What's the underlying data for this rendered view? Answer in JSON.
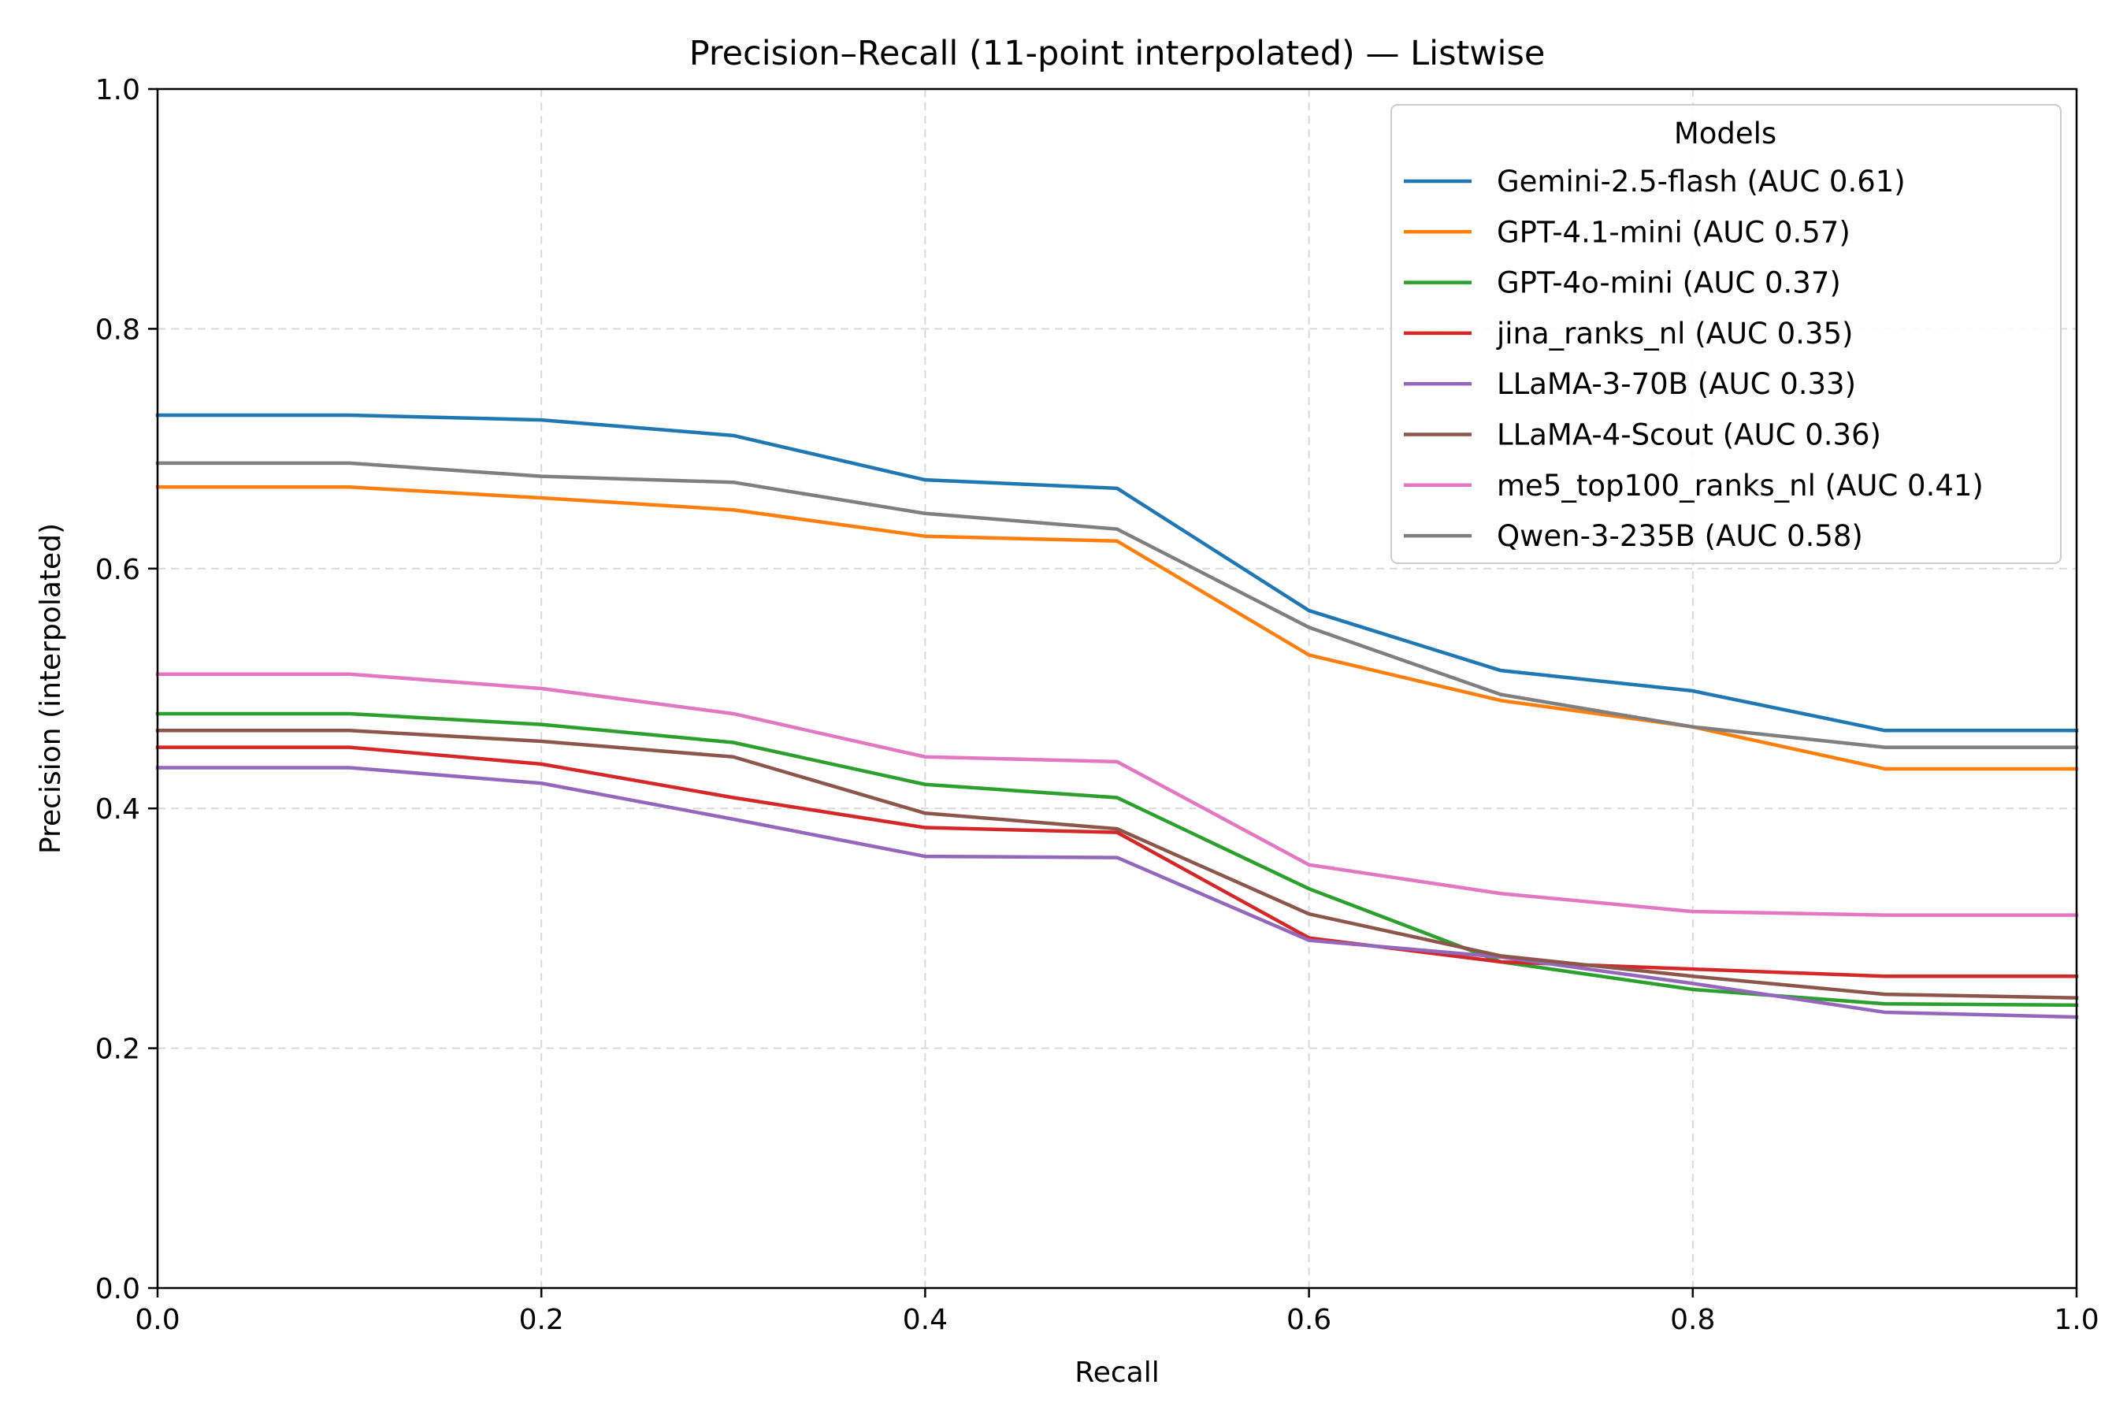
{
  "chart_data": {
    "type": "line",
    "title": "Precision–Recall (11-point interpolated) — Listwise",
    "xlabel": "Recall",
    "ylabel": "Precision (interpolated)",
    "xlim": [
      0.0,
      1.0
    ],
    "ylim": [
      0.0,
      1.0
    ],
    "xticks": [
      "0.0",
      "0.2",
      "0.4",
      "0.6",
      "0.8",
      "1.0"
    ],
    "yticks": [
      "0.0",
      "0.2",
      "0.4",
      "0.6",
      "0.8",
      "1.0"
    ],
    "grid": true,
    "legend": {
      "title": "Models",
      "position": "top-right"
    },
    "x": [
      0.0,
      0.1,
      0.2,
      0.3,
      0.4,
      0.5,
      0.6,
      0.7,
      0.8,
      0.9,
      1.0
    ],
    "series": [
      {
        "name": "Gemini-2.5-flash (AUC 0.61)",
        "color": "#1f77b4",
        "values": [
          0.728,
          0.728,
          0.724,
          0.711,
          0.674,
          0.667,
          0.565,
          0.515,
          0.498,
          0.465,
          0.465
        ]
      },
      {
        "name": "GPT-4.1-mini (AUC 0.57)",
        "color": "#ff7f0e",
        "values": [
          0.668,
          0.668,
          0.659,
          0.649,
          0.627,
          0.623,
          0.528,
          0.49,
          0.468,
          0.433,
          0.433
        ]
      },
      {
        "name": "GPT-4o-mini (AUC 0.37)",
        "color": "#2ca02c",
        "values": [
          0.479,
          0.479,
          0.47,
          0.455,
          0.42,
          0.409,
          0.333,
          0.272,
          0.249,
          0.237,
          0.236
        ]
      },
      {
        "name": "jina_ranks_nl (AUC 0.35)",
        "color": "#d62728",
        "values": [
          0.451,
          0.451,
          0.437,
          0.409,
          0.384,
          0.38,
          0.292,
          0.272,
          0.266,
          0.26,
          0.26
        ]
      },
      {
        "name": "LLaMA-3-70B (AUC 0.33)",
        "color": "#9467bd",
        "values": [
          0.434,
          0.434,
          0.421,
          0.391,
          0.36,
          0.359,
          0.29,
          0.276,
          0.254,
          0.23,
          0.226
        ]
      },
      {
        "name": "LLaMA-4-Scout (AUC 0.36)",
        "color": "#8c564b",
        "values": [
          0.465,
          0.465,
          0.456,
          0.443,
          0.396,
          0.383,
          0.312,
          0.277,
          0.26,
          0.245,
          0.242
        ]
      },
      {
        "name": "me5_top100_ranks_nl (AUC 0.41)",
        "color": "#e377c2",
        "values": [
          0.512,
          0.512,
          0.5,
          0.479,
          0.443,
          0.439,
          0.353,
          0.329,
          0.314,
          0.311,
          0.311
        ]
      },
      {
        "name": "Qwen-3-235B (AUC 0.58)",
        "color": "#7f7f7f",
        "values": [
          0.688,
          0.688,
          0.677,
          0.672,
          0.646,
          0.633,
          0.551,
          0.495,
          0.468,
          0.451,
          0.451
        ]
      }
    ]
  }
}
